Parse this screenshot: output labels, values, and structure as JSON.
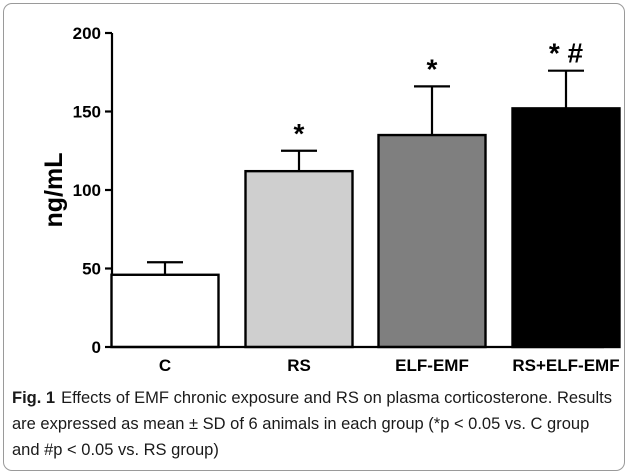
{
  "chart_data": {
    "type": "bar",
    "ylabel": "ng/mL",
    "xlabel": "",
    "ylim": [
      0,
      200
    ],
    "yticks": [
      0,
      50,
      100,
      150,
      200
    ],
    "categories": [
      "C",
      "RS",
      "ELF-EMF",
      "RS+ELF-EMF"
    ],
    "values": [
      46,
      112,
      135,
      152
    ],
    "errors": [
      8,
      13,
      31,
      24
    ],
    "bar_colors": [
      "#ffffff",
      "#cfcfcf",
      "#7f7f7f",
      "#000000"
    ],
    "annotations": [
      "",
      "*",
      "*",
      "* #"
    ],
    "grid": false,
    "legend": "none"
  },
  "caption": {
    "figure_label": "Fig. 1",
    "text": "Effects of EMF chronic exposure and RS on plasma corticosterone. Results are expressed as mean ± SD of 6 animals in each group (*p < 0.05 vs. C group and #p < 0.05 vs. RS group)"
  }
}
